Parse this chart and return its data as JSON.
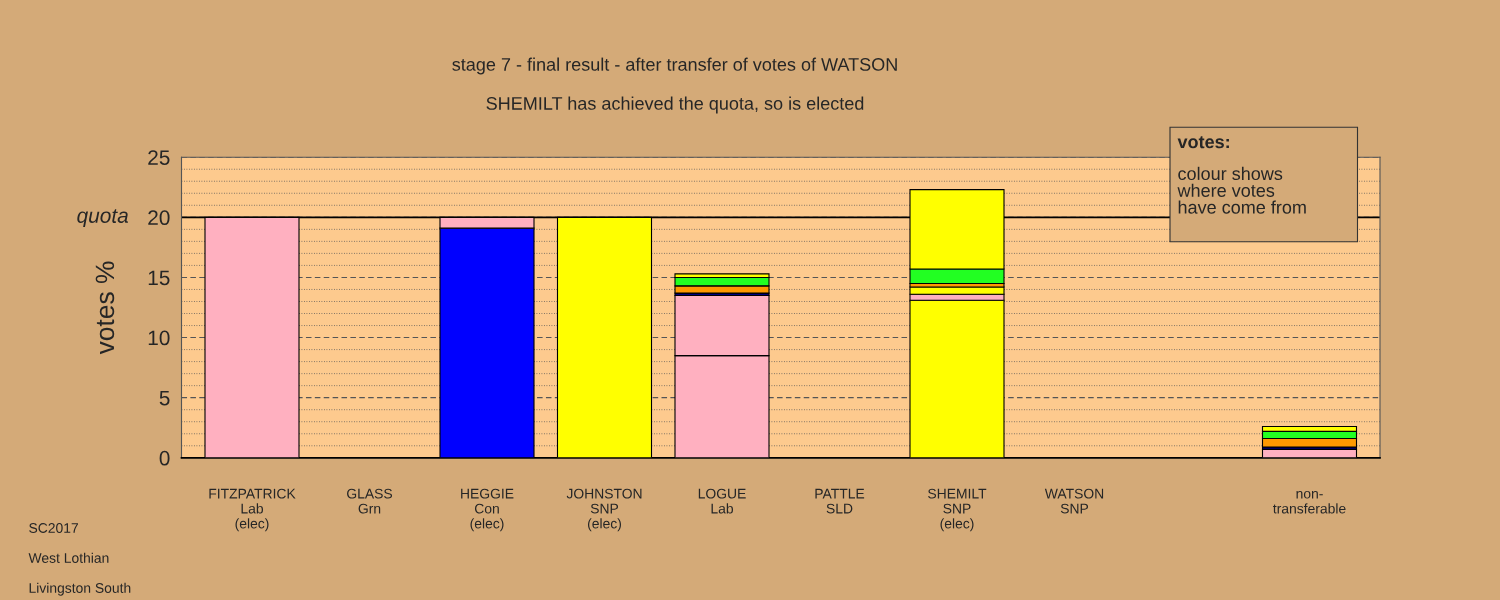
{
  "chart_data": {
    "type": "bar",
    "stacked": true,
    "title": "stage 7 - final result - after transfer of votes of WATSON",
    "subtitle": "SHEMILT has achieved the quota, so is elected",
    "ylabel": "votes %",
    "categories": [
      "FITZPATRICK\nLab\n(elec)",
      "GLASS\nGrn",
      "HEGGIE\nCon\n(elec)",
      "JOHNSTON\nSNP\n(elec)",
      "LOGUE\nLab",
      "PATTLE\nSLD",
      "SHEMILT\nSNP\n(elec)",
      "WATSON\nSNP",
      null,
      "non-\ntransferable"
    ],
    "series": [
      {
        "values": [
          20,
          0,
          19.1,
          20,
          8.5,
          0,
          13.1,
          0,
          null,
          0.7
        ],
        "colors": [
          "#ffb0c0",
          "#000000",
          "#0000ff",
          "#ffff00",
          "#ffb0c0",
          "#000000",
          "#ffff00",
          "#000000",
          "#ffb0c0",
          "#ffb0c0"
        ]
      },
      {
        "values": [
          null,
          null,
          0.9,
          null,
          5.0,
          null,
          0.5,
          null,
          null,
          0.2
        ],
        "colors": [
          "#ffb0c0",
          "#ffb0c0",
          "#ffb0c0",
          "#ffb0c0",
          "#ffb0c0",
          "#ffb0c0",
          "#ffb0c0",
          "#ffb0c0",
          "#ffb0c0",
          "#000080"
        ]
      },
      {
        "values": [
          null,
          null,
          null,
          null,
          0.2,
          null,
          0.6,
          null,
          null,
          0.7
        ],
        "colors": [
          "#000080",
          "#000080",
          "#000080",
          "#000080",
          "#000080",
          "#000080",
          "#ffff00",
          "#000080",
          "#000080",
          "#ff9900"
        ]
      },
      {
        "values": [
          null,
          null,
          null,
          null,
          0.6,
          null,
          0.3,
          null,
          null,
          0.6
        ],
        "colors": [
          "#ff9900",
          "#ff9900",
          "#ff9900",
          "#ff9900",
          "#ff9900",
          "#ff9900",
          "#ff9900",
          "#ff9900",
          "#ff9900",
          "#22ff22"
        ]
      },
      {
        "values": [
          null,
          null,
          null,
          null,
          0.7,
          null,
          1.2,
          null,
          null,
          0.4
        ],
        "colors": [
          "#22ff22",
          "#22ff22",
          "#22ff22",
          "#22ff22",
          "#22ff22",
          "#22ff22",
          "#22ff22",
          "#22ff22",
          "#22ff22",
          "#ffff00"
        ]
      },
      {
        "values": [
          null,
          null,
          null,
          null,
          0.3,
          null,
          6.6,
          null,
          null,
          null
        ],
        "colors": [
          "#ffff00",
          "#ffff00",
          "#ffff00",
          "#ffff00",
          "#ffff00",
          "#ffff00",
          "#ffff00",
          "#ffff00",
          "#ffff00",
          "#ffff00"
        ]
      }
    ],
    "ylim": [
      0,
      25
    ],
    "yticks": [
      0,
      {
        "value": 1,
        "label": null
      },
      {
        "value": 2,
        "label": null
      },
      {
        "value": 3,
        "label": null
      },
      {
        "value": 4,
        "label": null
      },
      5,
      {
        "value": 6,
        "label": null
      },
      {
        "value": 7,
        "label": null
      },
      {
        "value": 8,
        "label": null
      },
      {
        "value": 9,
        "label": null
      },
      10,
      {
        "value": 11,
        "label": null
      },
      {
        "value": 12,
        "label": null
      },
      {
        "value": 13,
        "label": null
      },
      {
        "value": 14,
        "label": null
      },
      15,
      {
        "value": 16,
        "label": null
      },
      {
        "value": 17,
        "label": null
      },
      {
        "value": 18,
        "label": null
      },
      {
        "value": 19,
        "label": null
      },
      20,
      {
        "value": 21,
        "label": null
      },
      {
        "value": 22,
        "label": null
      },
      {
        "value": 23,
        "label": null
      },
      {
        "value": 24,
        "label": null
      },
      25
    ],
    "grid": "y",
    "ref_lines": [
      {
        "axis": "y",
        "value": 20,
        "label": "quota",
        "color": "#000000"
      }
    ],
    "annotations": [
      "votes:",
      "colour shows\nwhere votes\nhave come from",
      "SC2017",
      "West Lothian",
      "Livingston South"
    ]
  }
}
